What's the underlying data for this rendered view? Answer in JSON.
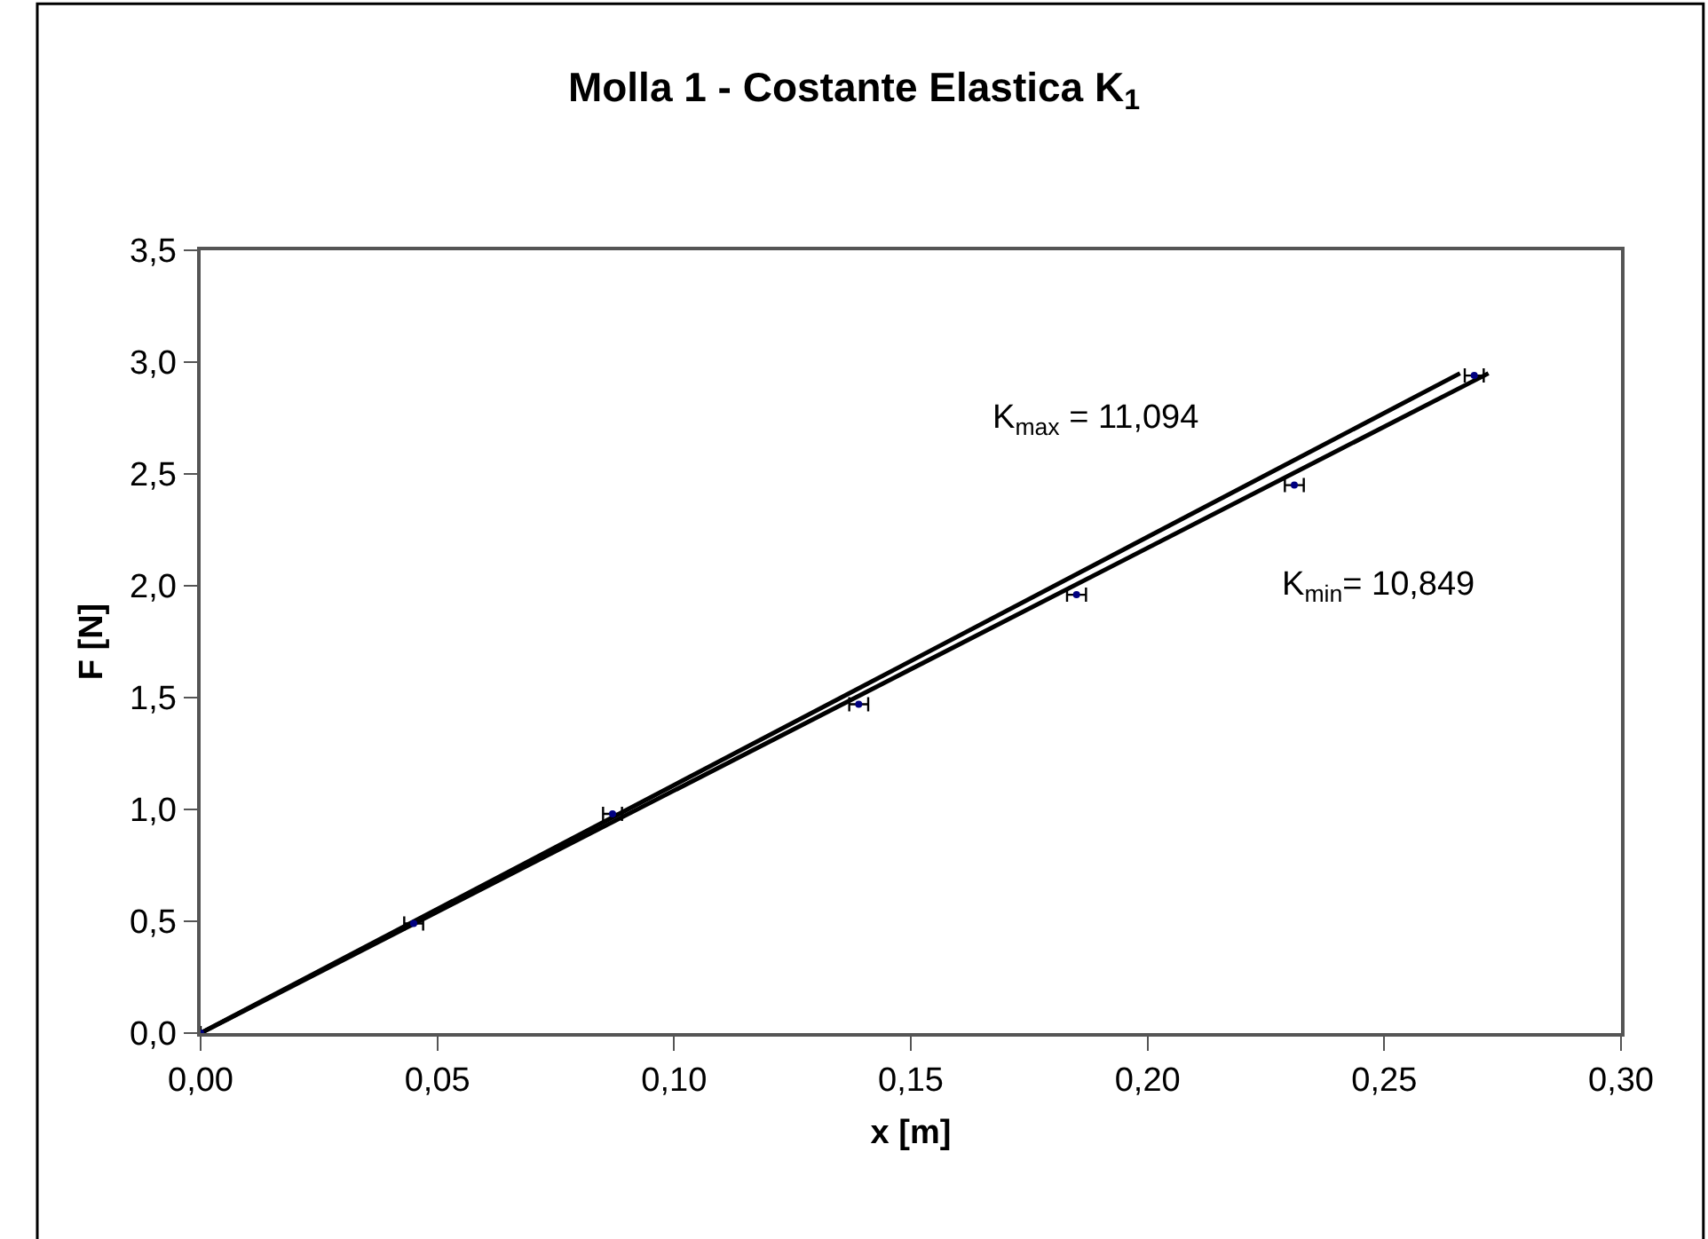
{
  "chart_data": {
    "type": "scatter",
    "title": "Molla 1 - Costante Elastica K$_{1}$",
    "xlabel": "x [m]",
    "ylabel": "F [N]",
    "xlim": [
      0,
      0.3
    ],
    "xticks": [
      {
        "value": 0,
        "label": "0,00"
      },
      {
        "value": 0.05,
        "label": "0,05"
      },
      {
        "value": 0.1,
        "label": "0,10"
      },
      {
        "value": 0.15,
        "label": "0,15"
      },
      {
        "value": 0.2,
        "label": "0,20"
      },
      {
        "value": 0.25,
        "label": "0,25"
      },
      {
        "value": 0.3,
        "label": "0,30"
      }
    ],
    "ylim": [
      0,
      3.5
    ],
    "yticks": [
      {
        "value": 0,
        "label": "0,0"
      },
      {
        "value": 0.5,
        "label": "0,5"
      },
      {
        "value": 1,
        "label": "1,0"
      },
      {
        "value": 1.5,
        "label": "1,5"
      },
      {
        "value": 2,
        "label": "2,0"
      },
      {
        "value": 2.5,
        "label": "2,5"
      },
      {
        "value": 3,
        "label": "3,0"
      },
      {
        "value": 3.5,
        "label": "3,5"
      }
    ],
    "series": [
      {
        "type": "line",
        "marker": "none",
        "color": "#000000",
        "x": [
          0,
          0.266
        ],
        "values": [
          0,
          2.95
        ]
      },
      {
        "type": "line",
        "marker": "none",
        "color": "#000000",
        "x": [
          0,
          0.272
        ],
        "values": [
          0,
          2.95
        ]
      },
      {
        "marker": "circle",
        "color": "#000080",
        "x": [
          0,
          0.045,
          0.087,
          0.139,
          0.185,
          0.231,
          0.269
        ],
        "values": [
          0,
          0.49,
          0.98,
          1.47,
          1.96,
          2.45,
          2.94
        ],
        "xerrors": [
          null,
          0.002,
          0.002,
          0.002,
          0.002,
          0.002,
          0.002
        ]
      }
    ],
    "annotations": [
      "K$_{max}$ = 11,094",
      "K$_{min}$= 10,849"
    ]
  }
}
